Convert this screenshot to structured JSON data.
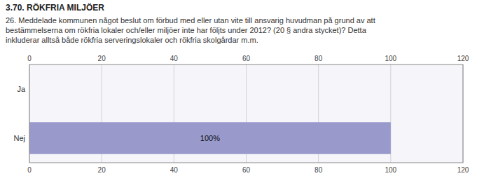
{
  "chart_data": {
    "type": "bar",
    "orientation": "horizontal",
    "title": "3.70. RÖKFRIA MILJÖER",
    "subtitle": [
      "26. Meddelade kommunen något beslut om förbud med eller utan vite till ansvarig huvudman på grund av att",
      "bestämmelserna om rökfria lokaler och/eller miljöer inte har följts under 2012? (20 § andra stycket)? Detta",
      "inkluderar alltså både rökfria serveringslokaler och rökfria skolgårdar m.m."
    ],
    "categories": [
      "Ja",
      "Nej"
    ],
    "values": [
      0,
      100
    ],
    "data_labels": true,
    "value_labels": [
      null,
      "100%"
    ],
    "color": "#9999CC",
    "xlim": [
      0,
      120
    ],
    "xticks": [
      0,
      20,
      40,
      60,
      80,
      100,
      120
    ],
    "grid": true
  }
}
